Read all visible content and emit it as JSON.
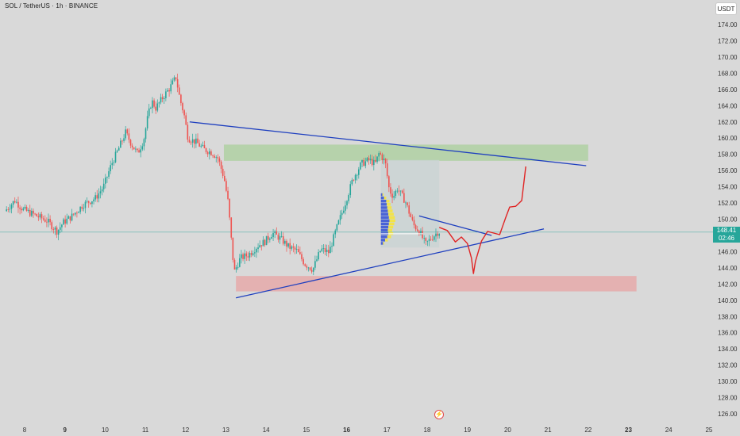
{
  "header": {
    "symbol": "SOL / TetherUS · 1h · BINANCE",
    "currency": "USDT"
  },
  "current_price": {
    "value": "148.41",
    "countdown": "02:46"
  },
  "colors": {
    "background": "#d9d9d9",
    "up_candle": "#26a69a",
    "down_candle": "#ef5350",
    "trendline": "#1e3fbf",
    "projection": "#e02424",
    "supply_zone": "#a9cf9b",
    "demand_zone": "#e7a3a3",
    "current_price": "#26a69a"
  },
  "icons": {
    "logo": "tradingview-logo-icon"
  },
  "chart_data": {
    "type": "candlestick",
    "y_axis": {
      "range": [
        125,
        176
      ],
      "ticks": [
        "174.00",
        "172.00",
        "170.00",
        "168.00",
        "166.00",
        "164.00",
        "162.00",
        "160.00",
        "158.00",
        "156.00",
        "154.00",
        "152.00",
        "150.00",
        "148.00",
        "146.00",
        "144.00",
        "142.00",
        "140.00",
        "138.00",
        "136.00",
        "134.00",
        "132.00",
        "130.00",
        "128.00",
        "126.00"
      ],
      "tick_values": [
        174,
        172,
        170,
        168,
        166,
        164,
        162,
        160,
        158,
        156,
        154,
        152,
        150,
        148,
        146,
        144,
        142,
        140,
        138,
        136,
        134,
        132,
        130,
        128,
        126
      ]
    },
    "x_axis": {
      "range": [
        7.55,
        25.2
      ],
      "ticks": [
        "8",
        "9",
        "10",
        "11",
        "12",
        "13",
        "14",
        "15",
        "16",
        "17",
        "18",
        "19",
        "20",
        "21",
        "22",
        "23",
        "24",
        "25"
      ],
      "tick_values": [
        8,
        9,
        10,
        11,
        12,
        13,
        14,
        15,
        16,
        17,
        18,
        19,
        20,
        21,
        22,
        23,
        24,
        25
      ],
      "bold_ticks": [
        "9",
        "16",
        "23"
      ]
    },
    "price_path": [
      [
        7.55,
        151.0
      ],
      [
        7.8,
        152.3
      ],
      [
        8.0,
        151.2
      ],
      [
        8.3,
        150.5
      ],
      [
        8.6,
        149.8
      ],
      [
        8.85,
        148.5
      ],
      [
        9.0,
        149.6
      ],
      [
        9.2,
        150.3
      ],
      [
        9.5,
        151.8
      ],
      [
        9.8,
        152.6
      ],
      [
        10.0,
        154.0
      ],
      [
        10.1,
        155.4
      ],
      [
        10.2,
        156.8
      ],
      [
        10.35,
        158.4
      ],
      [
        10.55,
        160.7
      ],
      [
        10.7,
        159.2
      ],
      [
        10.85,
        158.1
      ],
      [
        11.0,
        159.8
      ],
      [
        11.1,
        162.6
      ],
      [
        11.2,
        164.6
      ],
      [
        11.3,
        163.7
      ],
      [
        11.5,
        165.2
      ],
      [
        11.65,
        166.2
      ],
      [
        11.8,
        167.5
      ],
      [
        11.9,
        164.8
      ],
      [
        12.0,
        163.0
      ],
      [
        12.1,
        160.0
      ],
      [
        12.3,
        159.5
      ],
      [
        12.5,
        158.6
      ],
      [
        12.7,
        158.2
      ],
      [
        12.85,
        157.5
      ],
      [
        13.0,
        155.0
      ],
      [
        13.1,
        152.0
      ],
      [
        13.2,
        146.0
      ],
      [
        13.25,
        143.5
      ],
      [
        13.4,
        145.2
      ],
      [
        13.6,
        145.6
      ],
      [
        13.85,
        146.8
      ],
      [
        14.0,
        147.2
      ],
      [
        14.2,
        148.3
      ],
      [
        14.4,
        147.6
      ],
      [
        14.6,
        146.6
      ],
      [
        14.8,
        146.1
      ],
      [
        15.0,
        144.5
      ],
      [
        15.2,
        143.8
      ],
      [
        15.4,
        146.3
      ],
      [
        15.6,
        145.9
      ],
      [
        15.8,
        149.0
      ],
      [
        16.0,
        151.9
      ],
      [
        16.2,
        155.0
      ],
      [
        16.4,
        156.8
      ],
      [
        16.6,
        157.3
      ],
      [
        16.75,
        156.8
      ],
      [
        16.85,
        158.2
      ],
      [
        17.0,
        157.0
      ],
      [
        17.1,
        153.6
      ],
      [
        17.2,
        152.8
      ],
      [
        17.3,
        153.8
      ],
      [
        17.5,
        152.2
      ],
      [
        17.7,
        149.3
      ],
      [
        17.85,
        148.5
      ],
      [
        18.0,
        146.9
      ],
      [
        18.15,
        147.7
      ],
      [
        18.3,
        148.4
      ]
    ],
    "volume_profile": {
      "price_levels": [
        153.0,
        152.6,
        152.2,
        151.8,
        151.4,
        151.0,
        150.6,
        150.2,
        149.8,
        149.4,
        149.0,
        148.6,
        148.2,
        147.8,
        147.4,
        147.0
      ],
      "up_volume": [
        0.15,
        0.3,
        0.5,
        0.55,
        0.6,
        0.65,
        0.7,
        0.75,
        0.8,
        0.75,
        0.7,
        0.65,
        0.7,
        0.6,
        0.4,
        0.2
      ],
      "down_volume": [
        0.1,
        0.2,
        0.3,
        0.35,
        0.4,
        0.45,
        0.5,
        0.55,
        0.55,
        0.5,
        0.45,
        0.4,
        0.45,
        0.35,
        0.25,
        0.1
      ]
    },
    "zones": [
      {
        "name": "supply",
        "x": [
          12.95,
          22.0
        ],
        "y": [
          157.2,
          159.2
        ]
      },
      {
        "name": "demand",
        "x": [
          13.25,
          23.2
        ],
        "y": [
          141.1,
          143.0
        ]
      }
    ],
    "trendlines": [
      {
        "name": "upper-triangle",
        "from": [
          12.1,
          162.0
        ],
        "to": [
          21.95,
          156.6
        ]
      },
      {
        "name": "lower-triangle",
        "from": [
          13.25,
          140.3
        ],
        "to": [
          20.9,
          148.8
        ]
      },
      {
        "name": "small-upper",
        "from": [
          17.8,
          150.4
        ],
        "to": [
          19.6,
          148.0
        ]
      }
    ],
    "projection_path": [
      [
        18.3,
        149.0
      ],
      [
        18.5,
        148.6
      ],
      [
        18.7,
        147.2
      ],
      [
        18.85,
        147.8
      ],
      [
        19.0,
        147.0
      ],
      [
        19.1,
        145.2
      ],
      [
        19.15,
        143.3
      ],
      [
        19.2,
        144.8
      ],
      [
        19.35,
        147.3
      ],
      [
        19.5,
        148.5
      ],
      [
        19.8,
        148.1
      ],
      [
        19.95,
        150.2
      ],
      [
        20.05,
        151.5
      ],
      [
        20.2,
        151.6
      ],
      [
        20.35,
        152.3
      ],
      [
        20.45,
        156.5
      ]
    ],
    "current_price_value": 148.41
  }
}
